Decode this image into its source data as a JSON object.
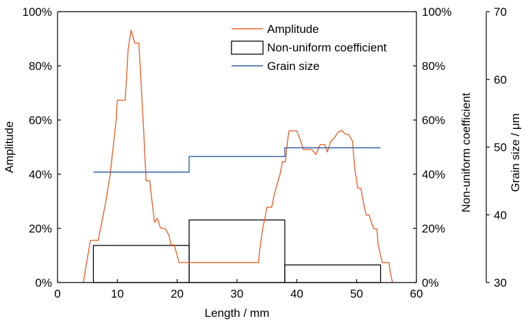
{
  "chart_data": {
    "type": "line",
    "x": {
      "label": "Length / mm",
      "range": [
        0,
        60
      ],
      "ticks": [
        0,
        10,
        20,
        30,
        40,
        50,
        60
      ],
      "tick_labels": [
        "0",
        "10",
        "20",
        "30",
        "40",
        "50",
        "60"
      ]
    },
    "y_left": {
      "label": "Amplitude",
      "range": [
        0,
        100
      ],
      "ticks": [
        0,
        20,
        40,
        60,
        80,
        100
      ],
      "tick_labels": [
        "0%",
        "20%",
        "40%",
        "60%",
        "80%",
        "100%"
      ]
    },
    "y_right": {
      "label": "Non-uniform coefficient",
      "range": [
        0,
        100
      ],
      "ticks": [
        0,
        20,
        40,
        60,
        80,
        100
      ],
      "tick_labels": [
        "0%",
        "20%",
        "40%",
        "60%",
        "80%",
        "100%"
      ]
    },
    "y_right2": {
      "label": "Grain size / μm",
      "range": [
        30,
        70
      ],
      "ticks": [
        30,
        40,
        50,
        60,
        70
      ],
      "tick_labels": [
        "30",
        "40",
        "50",
        "60",
        "70"
      ]
    },
    "legend": {
      "placement": "top-center",
      "items": [
        {
          "label": "Amplitude",
          "kind": "line",
          "color": "#e8622a"
        },
        {
          "label": "Non-uniform coefficient",
          "kind": "box",
          "color": "#000000"
        },
        {
          "label": "Grain size",
          "kind": "line",
          "color": "#2e5ca8"
        }
      ]
    },
    "series": [
      {
        "name": "Amplitude",
        "axis": "left",
        "color": "#e8622a",
        "points": [
          [
            4.3,
            0
          ],
          [
            5.5,
            15.6
          ],
          [
            6.8,
            15.6
          ],
          [
            7.2,
            20
          ],
          [
            8,
            29
          ],
          [
            8.8,
            40
          ],
          [
            9.4,
            52
          ],
          [
            9.8,
            60
          ],
          [
            10,
            67.3
          ],
          [
            11.3,
            67.3
          ],
          [
            11.5,
            74
          ],
          [
            11.8,
            86
          ],
          [
            12.3,
            93.2
          ],
          [
            12.9,
            88.4
          ],
          [
            13.6,
            88.4
          ],
          [
            14,
            72
          ],
          [
            14.4,
            56
          ],
          [
            14.8,
            37.6
          ],
          [
            15.4,
            37.6
          ],
          [
            15.8,
            30
          ],
          [
            16.2,
            22.3
          ],
          [
            16.7,
            23.7
          ],
          [
            17.2,
            20.2
          ],
          [
            18,
            19.9
          ],
          [
            18.6,
            17.6
          ],
          [
            19,
            13.9
          ],
          [
            19.5,
            13.9
          ],
          [
            20,
            10
          ],
          [
            20.3,
            7.4
          ],
          [
            33.6,
            7.4
          ],
          [
            33.8,
            12
          ],
          [
            34.3,
            20
          ],
          [
            34.7,
            24
          ],
          [
            35,
            27.8
          ],
          [
            35.8,
            27.8
          ],
          [
            36.2,
            32
          ],
          [
            36.8,
            37
          ],
          [
            37.2,
            40
          ],
          [
            37.6,
            44.6
          ],
          [
            38.1,
            44.6
          ],
          [
            38.5,
            53
          ],
          [
            38.7,
            56
          ],
          [
            40,
            56
          ],
          [
            40.7,
            52
          ],
          [
            41.1,
            49.1
          ],
          [
            42.5,
            49.1
          ],
          [
            43.2,
            47.3
          ],
          [
            43.9,
            50.9
          ],
          [
            44.7,
            50.9
          ],
          [
            45.1,
            48.2
          ],
          [
            45.7,
            52.2
          ],
          [
            46.3,
            53.5
          ],
          [
            46.9,
            55.5
          ],
          [
            47.5,
            56.2
          ],
          [
            48.1,
            54.8
          ],
          [
            48.7,
            54.5
          ],
          [
            49.3,
            52.3
          ],
          [
            49.7,
            42
          ],
          [
            50.2,
            34.8
          ],
          [
            50.7,
            34.8
          ],
          [
            51.2,
            29
          ],
          [
            51.6,
            24.9
          ],
          [
            52.1,
            24.9
          ],
          [
            52.5,
            22
          ],
          [
            52.9,
            19.8
          ],
          [
            53.4,
            19.8
          ],
          [
            53.6,
            14
          ],
          [
            54,
            10
          ],
          [
            54.3,
            7.4
          ],
          [
            55.4,
            7.4
          ],
          [
            55.7,
            3
          ],
          [
            56,
            0
          ]
        ]
      },
      {
        "name": "Grain size",
        "axis": "right2",
        "color": "#2e5ca8",
        "points": [
          [
            6,
            46.3
          ],
          [
            22,
            46.3
          ],
          [
            22,
            48.6
          ],
          [
            38,
            48.6
          ],
          [
            38,
            49.9
          ],
          [
            54,
            49.9
          ]
        ]
      }
    ],
    "bars": {
      "name": "Non-uniform coefficient",
      "axis": "right",
      "color": "#000000",
      "items": [
        {
          "x_start": 6,
          "x_end": 22,
          "value": 13.7
        },
        {
          "x_start": 22,
          "x_end": 38,
          "value": 23.1
        },
        {
          "x_start": 38,
          "x_end": 54,
          "value": 6.5
        }
      ]
    }
  }
}
